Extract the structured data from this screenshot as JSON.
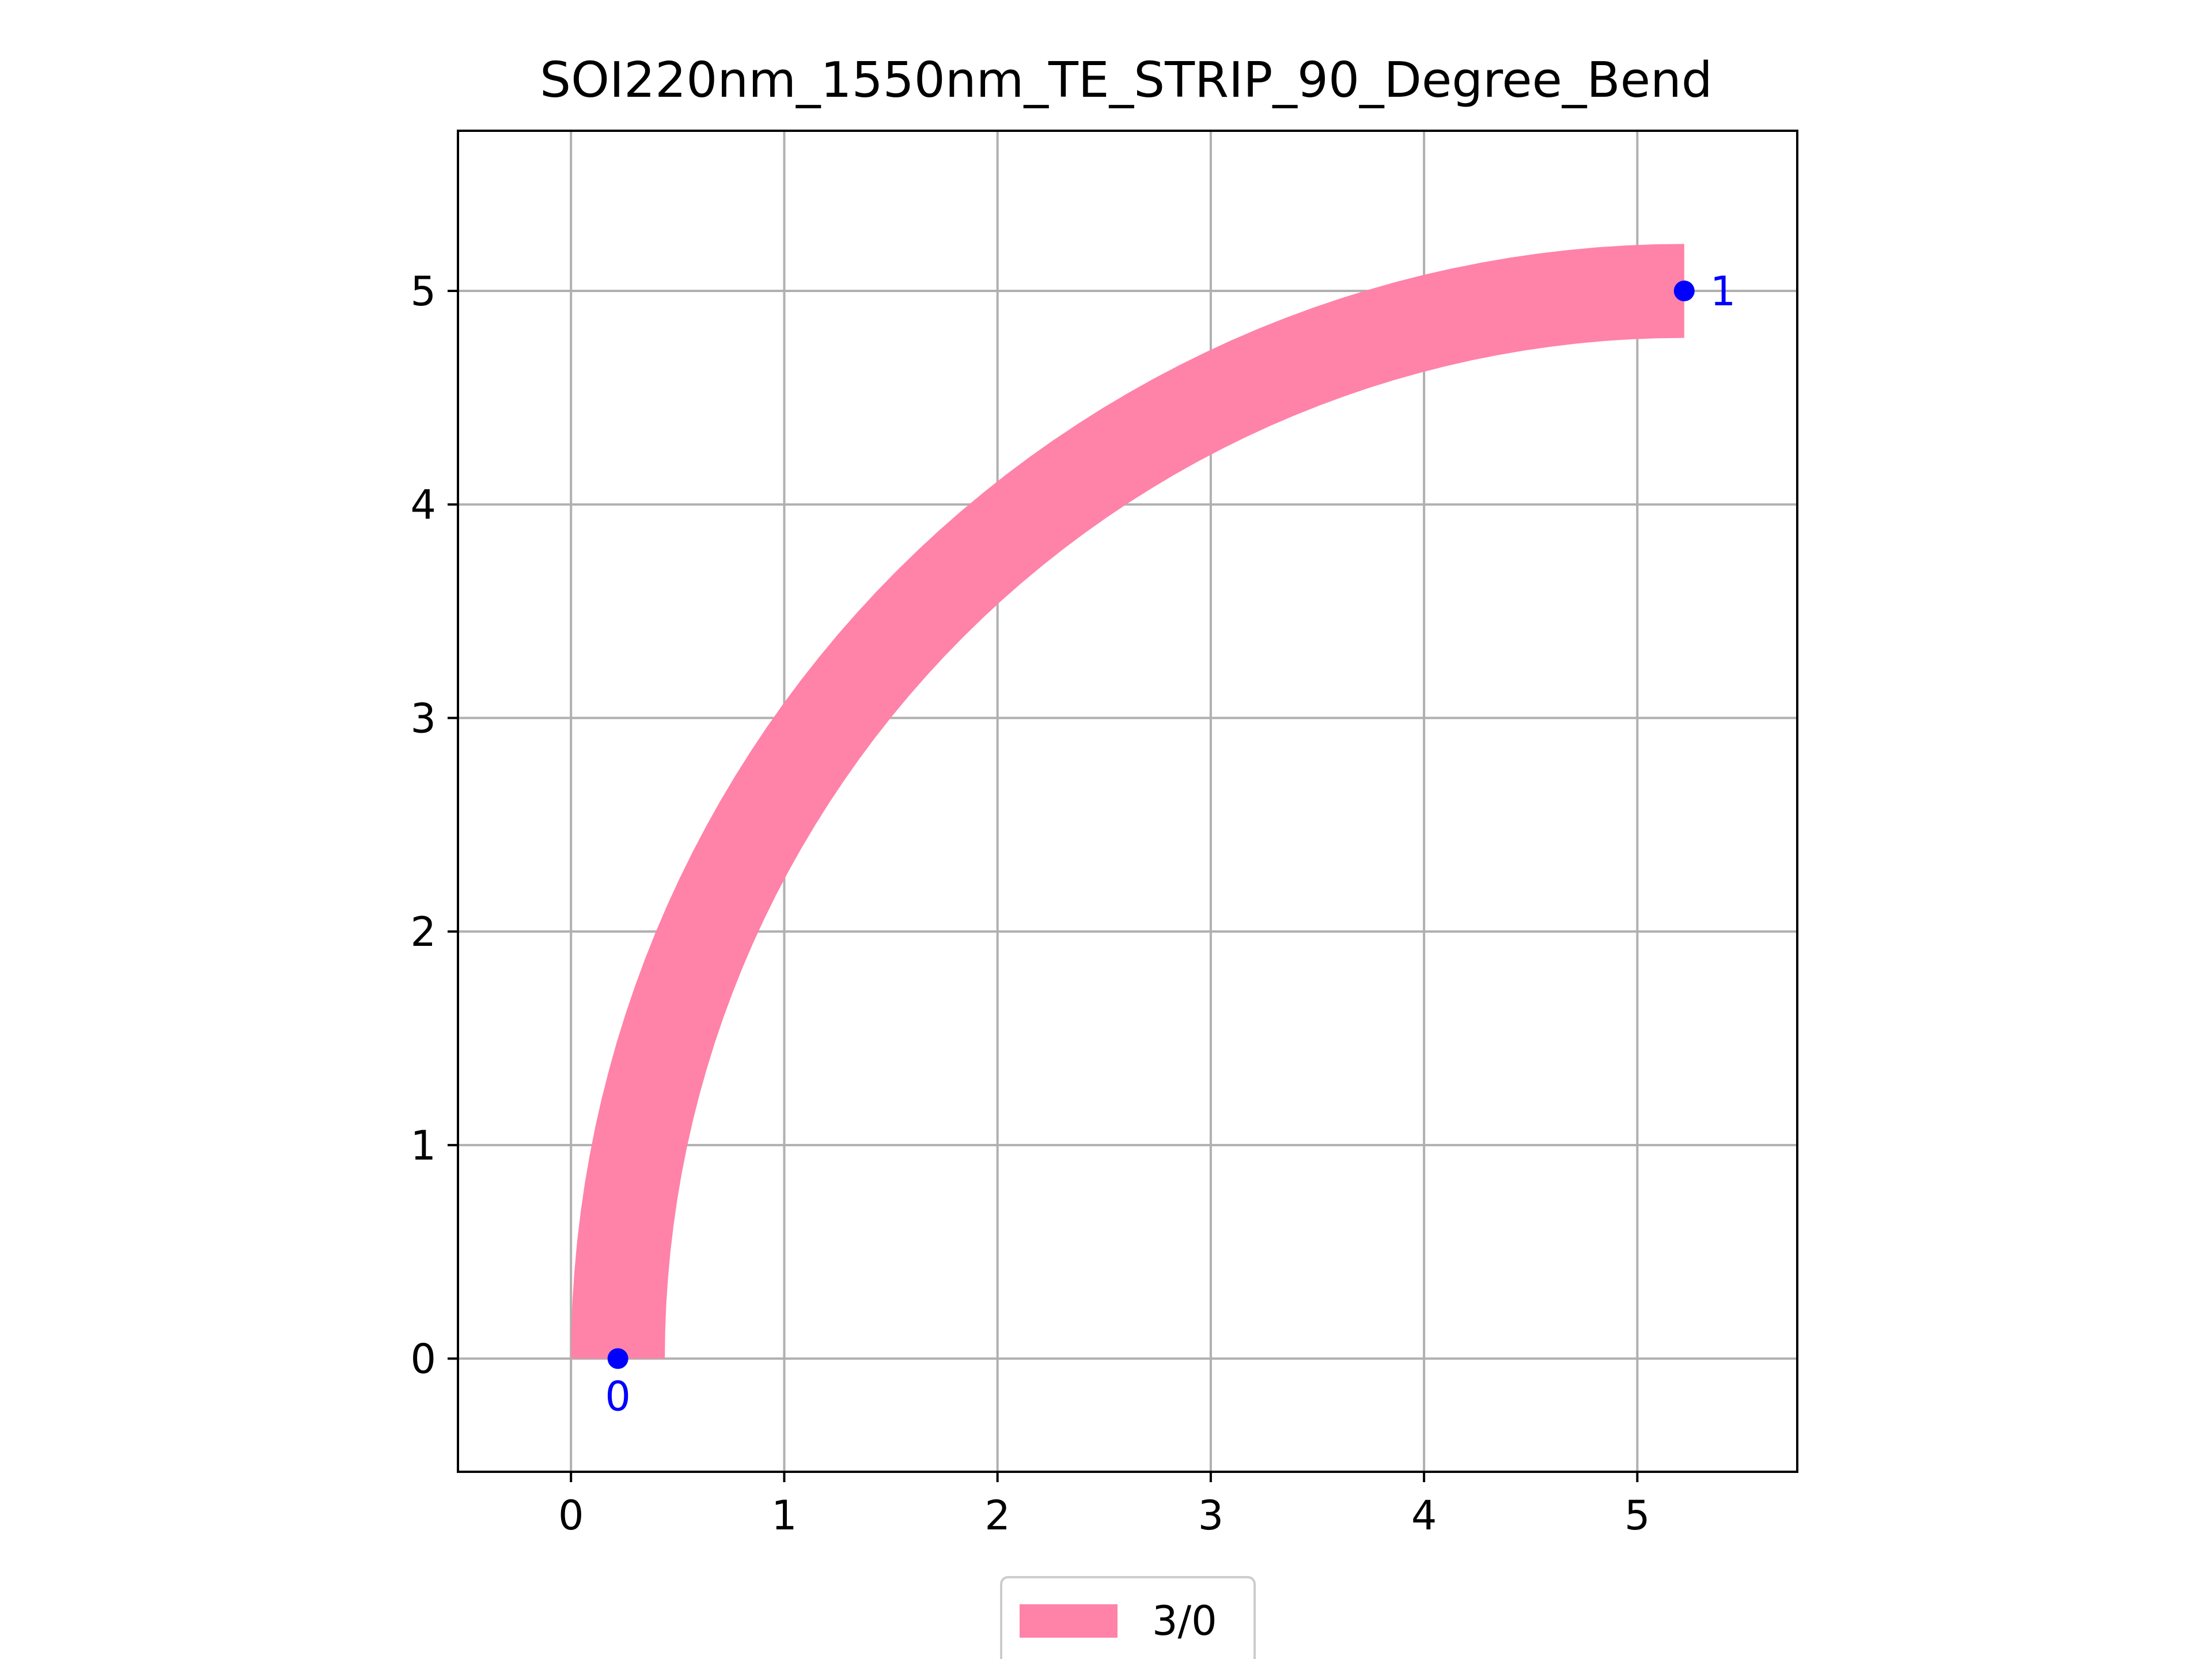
{
  "chart_data": {
    "type": "area",
    "title": "SOI220nm_1550nm_TE_STRIP_90_Degree_Bend",
    "xlabel": "",
    "ylabel": "",
    "xlim": [
      -0.53,
      5.75
    ],
    "ylim": [
      -0.53,
      5.75
    ],
    "xticks": [
      "0",
      "1",
      "2",
      "3",
      "4",
      "5"
    ],
    "yticks": [
      "0",
      "1",
      "2",
      "3",
      "4",
      "5"
    ],
    "grid": true,
    "legend_position": "bottom-center",
    "series": [
      {
        "name": "3/0",
        "color": "#ff82a9",
        "shape": "90-degree bend",
        "center": [
          5.22,
          0.0
        ],
        "inner_radius": 4.78,
        "outer_radius": 5.22,
        "start": [
          0.22,
          0.0
        ],
        "end": [
          5.22,
          5.0
        ]
      }
    ],
    "ports": [
      {
        "label": "0",
        "x": 0.22,
        "y": 0.0,
        "color": "#0000ff"
      },
      {
        "label": "1",
        "x": 5.22,
        "y": 5.0,
        "color": "#0000ff"
      }
    ]
  }
}
